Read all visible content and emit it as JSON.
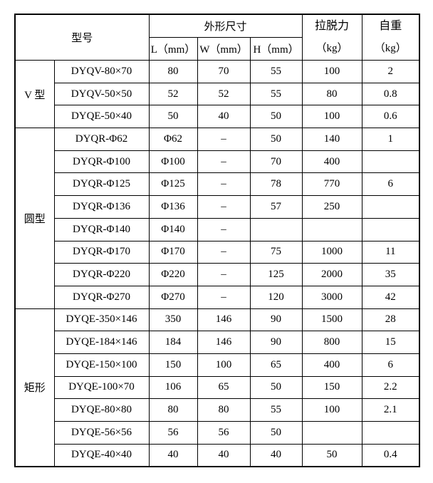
{
  "table": {
    "header": {
      "model": "型号",
      "dimensions": "外形尺寸",
      "l": "L（mm）",
      "w": "W（mm）",
      "h": "H（mm）",
      "pull_force_line1": "拉脱力",
      "pull_force_line2": "（kg）",
      "weight_line1": "自重",
      "weight_line2": "（kg）"
    },
    "columns_semantics": [
      "group",
      "model",
      "length_mm",
      "width_mm",
      "height_mm",
      "pull_off_force_kg",
      "self_weight_kg"
    ],
    "groups": [
      {
        "label": "V 型",
        "rows": [
          [
            "DYQV-80×70",
            "80",
            "70",
            "55",
            "100",
            "2"
          ],
          [
            "DYQV-50×50",
            "52",
            "52",
            "55",
            "80",
            "0.8"
          ],
          [
            "DYQE-50×40",
            "50",
            "40",
            "50",
            "100",
            "0.6"
          ]
        ]
      },
      {
        "label": "圆型",
        "rows": [
          [
            "DYQR-Φ62",
            "Φ62",
            "–",
            "50",
            "140",
            "1"
          ],
          [
            "DYQR-Φ100",
            "Φ100",
            "–",
            "70",
            "400",
            ""
          ],
          [
            "DYQR-Φ125",
            "Φ125",
            "–",
            "78",
            "770",
            "6"
          ],
          [
            "DYQR-Φ136",
            "Φ136",
            "–",
            "57",
            "250",
            ""
          ],
          [
            "DYQR-Φ140",
            "Φ140",
            "–",
            "",
            "",
            ""
          ],
          [
            "DYQR-Φ170",
            "Φ170",
            "–",
            "75",
            "1000",
            "11"
          ],
          [
            "DYQR-Φ220",
            "Φ220",
            "–",
            "125",
            "2000",
            "35"
          ],
          [
            "DYQR-Φ270",
            "Φ270",
            "–",
            "120",
            "3000",
            "42"
          ]
        ]
      },
      {
        "label": "矩形",
        "rows": [
          [
            "DYQE-350×146",
            "350",
            "146",
            "90",
            "1500",
            "28"
          ],
          [
            "DYQE-184×146",
            "184",
            "146",
            "90",
            "800",
            "15"
          ],
          [
            "DYQE-150×100",
            "150",
            "100",
            "65",
            "400",
            "6"
          ],
          [
            "DYQE-100×70",
            "106",
            "65",
            "50",
            "150",
            "2.2"
          ],
          [
            "DYQE-80×80",
            "80",
            "80",
            "55",
            "100",
            "2.1"
          ],
          [
            "DYQE-56×56",
            "56",
            "56",
            "50",
            "",
            ""
          ],
          [
            "DYQE-40×40",
            "40",
            "40",
            "40",
            "50",
            "0.4"
          ]
        ]
      }
    ],
    "colors": {
      "border": "#000000",
      "background": "#ffffff",
      "text": "#000000"
    }
  }
}
